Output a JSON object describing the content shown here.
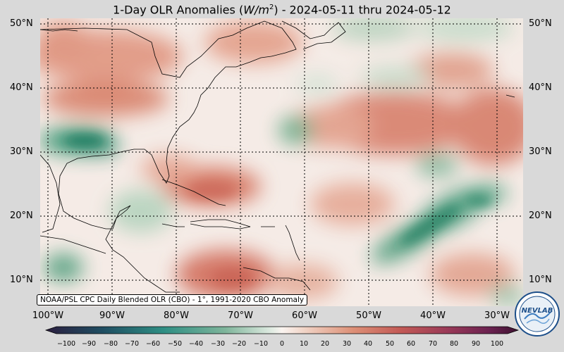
{
  "title": {
    "prefix": "1-Day OLR Anomalies (",
    "unit_base": "W/m",
    "unit_exp": "2",
    "suffix": ") - 2024-05-11 thru 2024-05-12"
  },
  "source_note": "NOAA/PSL CPC Daily Blended OLR (CBO) - 1°, 1991-2020 CBO Anomaly",
  "lat_labels": [
    "50°N",
    "40°N",
    "30°N",
    "20°N",
    "10°N"
  ],
  "lon_labels": [
    "100°W",
    "90°W",
    "80°W",
    "70°W",
    "60°W",
    "50°W",
    "40°W",
    "30°W"
  ],
  "colorbar": {
    "ticks": [
      "−100",
      "−90",
      "−80",
      "−70",
      "−60",
      "−50",
      "−40",
      "−30",
      "−20",
      "−10",
      "0",
      "10",
      "20",
      "30",
      "40",
      "50",
      "60",
      "70",
      "80",
      "90",
      "100"
    ]
  },
  "logo_text": "NEVLAB",
  "colors": {
    "positive": "#d2705f",
    "negative": "#3d9670",
    "neutral": "#f6eeea",
    "land": "#000000"
  }
}
